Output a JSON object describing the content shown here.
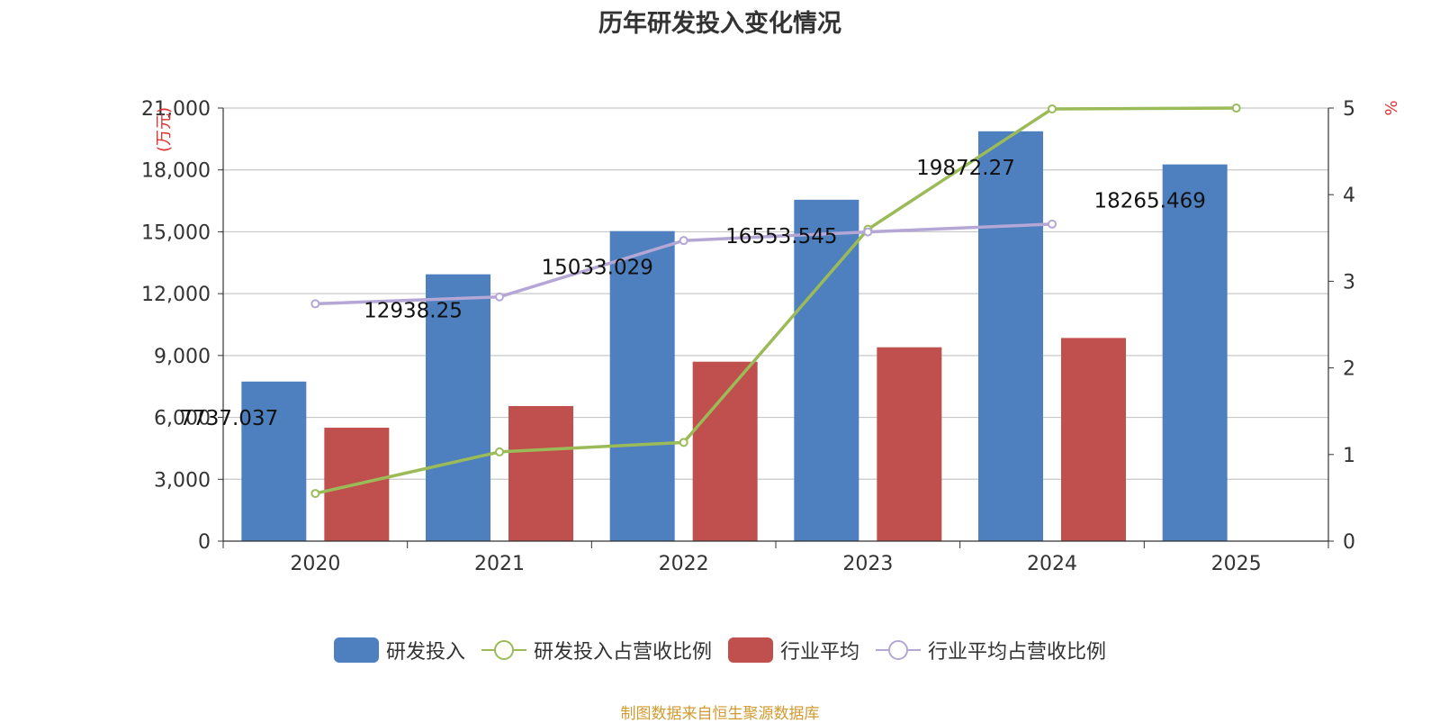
{
  "chart_data": {
    "type": "bar",
    "title": "历年研发投入变化情况",
    "categories": [
      "2020",
      "2021",
      "2022",
      "2023",
      "2024",
      "2025"
    ],
    "y_left": {
      "label": "(万元)",
      "range": [
        0,
        21000
      ],
      "ticks": [
        "0",
        "3,000",
        "6,000",
        "9,000",
        "12,000",
        "15,000",
        "18,000",
        "21,000"
      ]
    },
    "y_right": {
      "label": "%",
      "range": [
        0,
        5
      ],
      "ticks": [
        "0",
        "1",
        "2",
        "3",
        "4",
        "5"
      ]
    },
    "series": [
      {
        "name": "研发投入",
        "type": "bar",
        "axis": "left",
        "color": "#4e7fbe",
        "values": [
          7737.037,
          12938.25,
          15033.029,
          16553.545,
          19872.27,
          18265.469
        ],
        "labels": [
          "7737.037",
          "12938.25",
          "15033.029",
          "16553.545",
          "19872.27",
          "18265.469"
        ]
      },
      {
        "name": "研发投入占营收比例",
        "type": "line",
        "axis": "right",
        "color": "#9bbb59",
        "values": [
          0.55,
          1.03,
          1.14,
          3.6,
          4.99,
          5.0
        ]
      },
      {
        "name": "行业平均",
        "type": "bar",
        "axis": "left",
        "color": "#c0504d",
        "values": [
          5500,
          6550,
          8700,
          9400,
          9850,
          null
        ]
      },
      {
        "name": "行业平均占营收比例",
        "type": "line",
        "axis": "right",
        "color": "#b4a7d6",
        "values": [
          2.74,
          2.82,
          3.47,
          3.57,
          3.66,
          null
        ]
      }
    ],
    "grid": true,
    "legend_position": "bottom-center"
  },
  "source_note": "制图数据来自恒生聚源数据库"
}
